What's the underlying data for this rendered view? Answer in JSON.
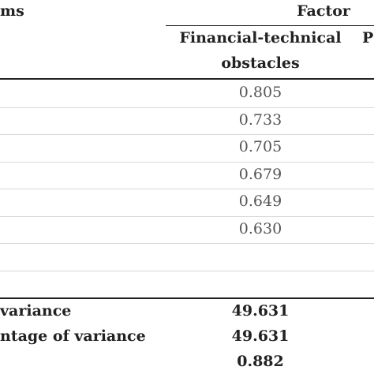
{
  "header": {
    "items": "ms",
    "factor": "Factor",
    "column": [
      "Financial-technical",
      "obstacles"
    ],
    "next_column": "P"
  },
  "loadings": [
    "0.805",
    "0.733",
    "0.705",
    "0.679",
    "0.649",
    "0.630"
  ],
  "summary": [
    {
      "label": "variance",
      "value": "49.631"
    },
    {
      "label": "ntage of variance",
      "value": "49.631"
    },
    {
      "value": "0.882"
    }
  ]
}
